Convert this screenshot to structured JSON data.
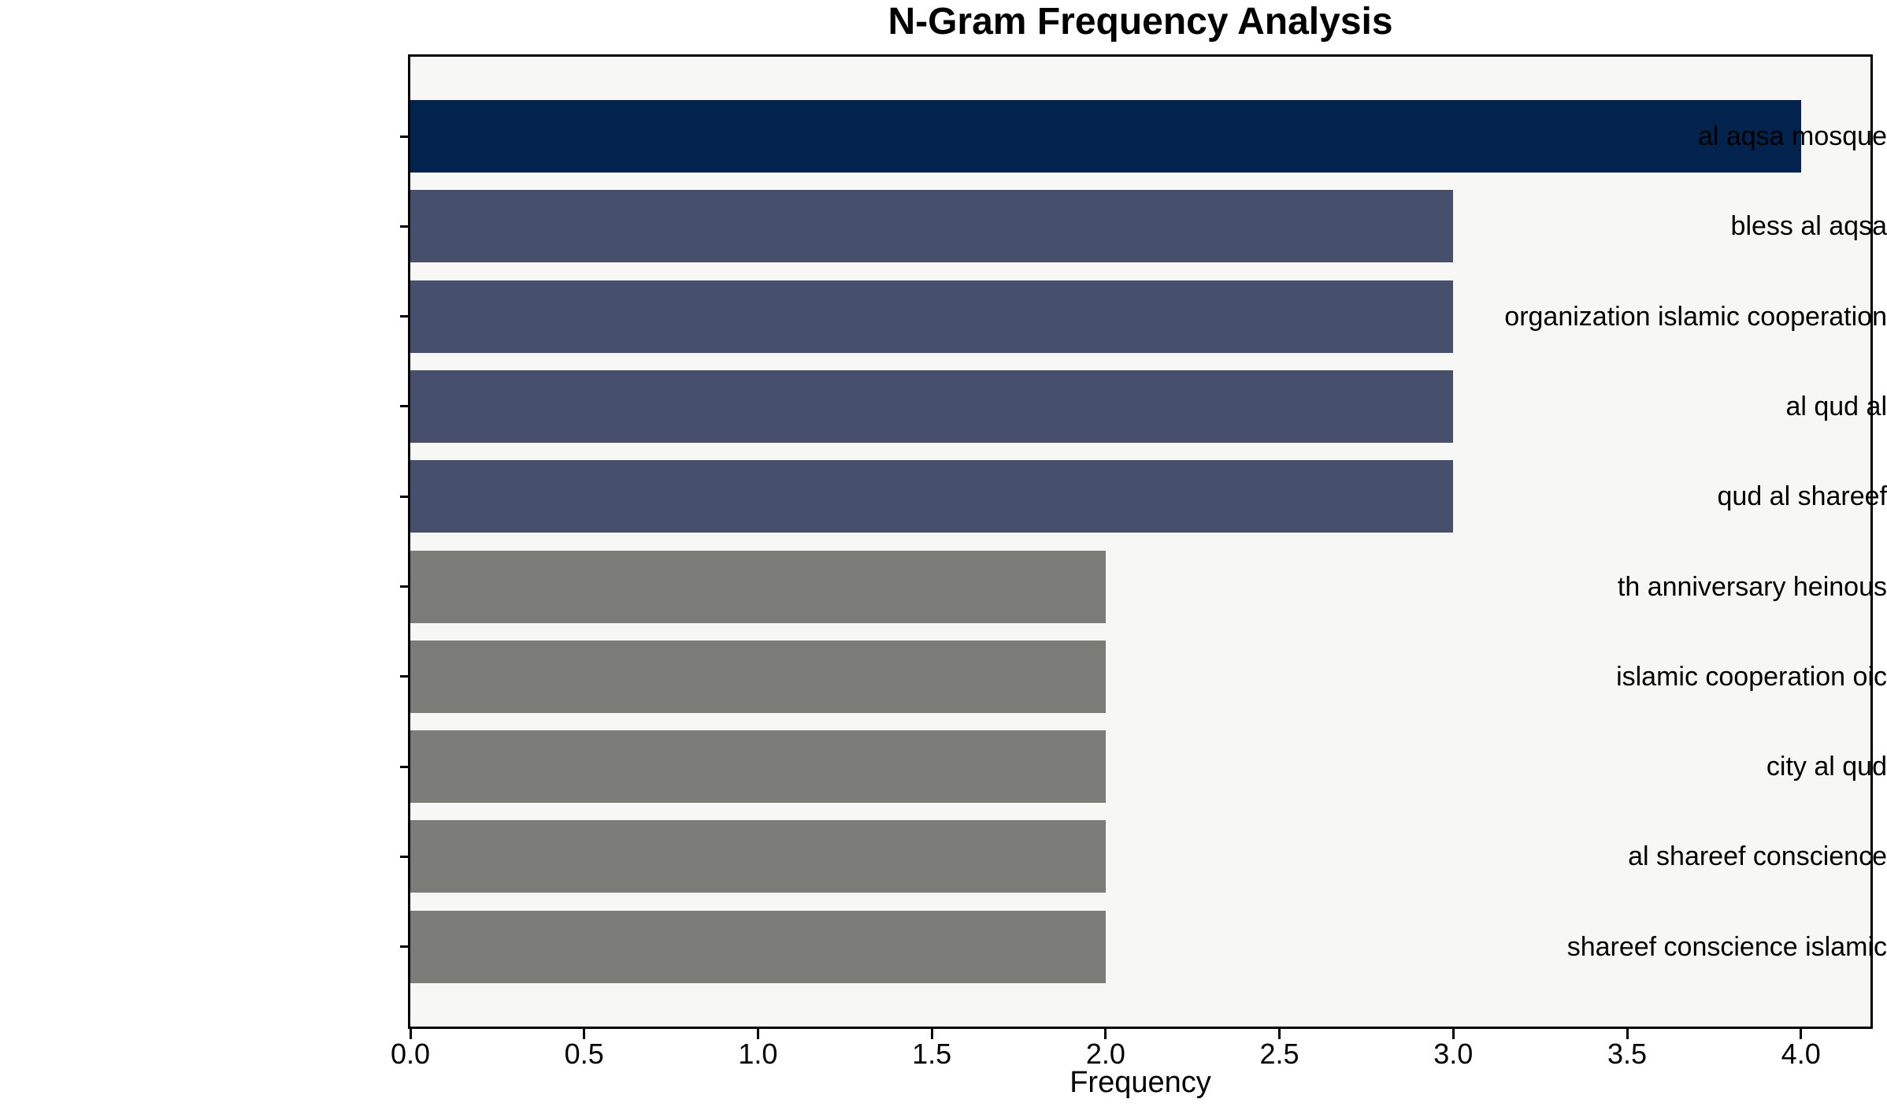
{
  "chart_data": {
    "type": "bar",
    "orientation": "horizontal",
    "title": "N-Gram Frequency Analysis",
    "xlabel": "Frequency",
    "ylabel": "",
    "categories": [
      "al aqsa mosque",
      "bless al aqsa",
      "organization islamic cooperation",
      "al qud al",
      "qud al shareef",
      "th anniversary heinous",
      "islamic cooperation oic",
      "city al qud",
      "al shareef conscience",
      "shareef conscience islamic"
    ],
    "values": [
      4,
      3,
      3,
      3,
      3,
      2,
      2,
      2,
      2,
      2
    ],
    "bar_colors": [
      "#01234d",
      "#46506d",
      "#46506d",
      "#46506d",
      "#46506d",
      "#7b7b77",
      "#7b7b77",
      "#7b7b77",
      "#7b7b77",
      "#7b7b77"
    ],
    "xlim": [
      0,
      4.2
    ],
    "xticks": [
      0,
      0.5,
      1,
      1.5,
      2,
      2.5,
      3,
      3.5,
      4
    ],
    "xtick_labels": [
      "0.0",
      "0.5",
      "1.0",
      "1.5",
      "2.0",
      "2.5",
      "3.0",
      "3.5",
      "4.0"
    ],
    "grid": false,
    "legend": null,
    "colors": {
      "figure_bg": "#ffffff",
      "plot_bg": "#f7f7f5",
      "spine": "#000000",
      "text": "#000000"
    }
  }
}
